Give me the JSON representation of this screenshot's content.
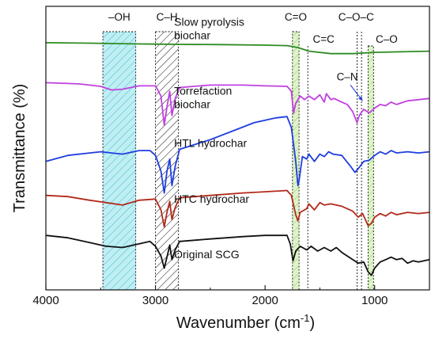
{
  "chart_data": {
    "type": "line",
    "title": "",
    "xlabel": "Wavenumber (cm",
    "xlabel_sup": "-1",
    "xlabel_tail": ")",
    "ylabel": "Transmittance (%)",
    "xlim": [
      4000,
      500
    ],
    "x_reversed": true,
    "xticks": [
      4000,
      3000,
      2000,
      1000
    ],
    "xtick_labels": [
      "4000",
      "3000",
      "2000",
      "1000"
    ],
    "y_ticks_shown": false,
    "bands": [
      {
        "label": "–OH",
        "from": 3480,
        "to": 3180,
        "fill": "#bfeef3",
        "hatch": "#39bfd1"
      },
      {
        "label": "C–H",
        "from": 3000,
        "to": 2790,
        "fill": "#ffffff",
        "hatch": "#111111"
      },
      {
        "label": "C=O",
        "from": 1750,
        "to": 1690,
        "fill": "#dff3c9",
        "hatch": "#8fcf5a"
      },
      {
        "label": "C=C",
        "from": 1610,
        "to": 1610,
        "fill": "none",
        "hatch": "none"
      },
      {
        "label": "C–O–C",
        "from": 1160,
        "to": 1120,
        "fill": "none",
        "hatch": "none"
      },
      {
        "label": "C–O",
        "from": 1060,
        "to": 1010,
        "fill": "#dff3c9",
        "hatch": "#8fcf5a"
      }
    ],
    "annotations": [
      {
        "text": "C–N",
        "x": 1250,
        "y": 8.35,
        "arrow_to": [
          1110,
          7.5
        ]
      }
    ],
    "series": [
      {
        "name": "Slow pyrolysis\nbiochar",
        "color": "#2e8b22",
        "label_x": 2830,
        "label_y": 10.6,
        "points": [
          [
            4000,
            9.9
          ],
          [
            3600,
            9.88
          ],
          [
            3200,
            9.85
          ],
          [
            3000,
            9.84
          ],
          [
            2800,
            9.83
          ],
          [
            2400,
            9.82
          ],
          [
            2000,
            9.8
          ],
          [
            1800,
            9.78
          ],
          [
            1700,
            9.7
          ],
          [
            1600,
            9.55
          ],
          [
            1400,
            9.45
          ],
          [
            1200,
            9.45
          ],
          [
            1000,
            9.5
          ],
          [
            800,
            9.52
          ],
          [
            500,
            9.55
          ]
        ]
      },
      {
        "name": "Torrefaction\nbiochar",
        "color": "#c040e0",
        "label_x": 2830,
        "label_y": 7.75,
        "points": [
          [
            4000,
            8.25
          ],
          [
            3700,
            8.2
          ],
          [
            3500,
            8.1
          ],
          [
            3400,
            7.95
          ],
          [
            3300,
            7.98
          ],
          [
            3150,
            8.12
          ],
          [
            3000,
            8.12
          ],
          [
            2950,
            7.7
          ],
          [
            2920,
            6.5
          ],
          [
            2895,
            7.25
          ],
          [
            2870,
            7.9
          ],
          [
            2850,
            6.9
          ],
          [
            2820,
            7.6
          ],
          [
            2780,
            8.05
          ],
          [
            2500,
            8.15
          ],
          [
            2200,
            8.15
          ],
          [
            2000,
            8.12
          ],
          [
            1800,
            8.1
          ],
          [
            1760,
            7.9
          ],
          [
            1740,
            7.0
          ],
          [
            1720,
            7.4
          ],
          [
            1680,
            7.7
          ],
          [
            1640,
            7.55
          ],
          [
            1600,
            7.7
          ],
          [
            1550,
            7.55
          ],
          [
            1500,
            7.75
          ],
          [
            1460,
            7.45
          ],
          [
            1440,
            7.8
          ],
          [
            1400,
            7.55
          ],
          [
            1370,
            7.6
          ],
          [
            1300,
            7.45
          ],
          [
            1250,
            7.35
          ],
          [
            1200,
            7.05
          ],
          [
            1160,
            6.6
          ],
          [
            1140,
            6.9
          ],
          [
            1100,
            7.15
          ],
          [
            1050,
            7.0
          ],
          [
            1000,
            7.2
          ],
          [
            950,
            7.35
          ],
          [
            900,
            7.3
          ],
          [
            850,
            7.45
          ],
          [
            800,
            7.35
          ],
          [
            700,
            7.5
          ],
          [
            600,
            7.55
          ],
          [
            500,
            7.6
          ]
        ]
      },
      {
        "name": "HTL hydrochar",
        "color": "#1f3de0",
        "label_x": 2830,
        "label_y": 5.6,
        "points": [
          [
            4000,
            5.0
          ],
          [
            3800,
            5.25
          ],
          [
            3600,
            5.35
          ],
          [
            3500,
            5.4
          ],
          [
            3400,
            5.35
          ],
          [
            3300,
            5.3
          ],
          [
            3150,
            5.45
          ],
          [
            3050,
            5.45
          ],
          [
            3000,
            5.25
          ],
          [
            2950,
            4.6
          ],
          [
            2920,
            3.7
          ],
          [
            2895,
            4.6
          ],
          [
            2870,
            5.1
          ],
          [
            2850,
            4.0
          ],
          [
            2820,
            4.8
          ],
          [
            2780,
            5.5
          ],
          [
            2500,
            5.9
          ],
          [
            2300,
            6.25
          ],
          [
            2100,
            6.6
          ],
          [
            1900,
            6.8
          ],
          [
            1800,
            6.85
          ],
          [
            1760,
            6.4
          ],
          [
            1720,
            5.0
          ],
          [
            1700,
            4.0
          ],
          [
            1690,
            4.2
          ],
          [
            1660,
            5.2
          ],
          [
            1620,
            5.1
          ],
          [
            1600,
            5.3
          ],
          [
            1550,
            5.0
          ],
          [
            1500,
            5.3
          ],
          [
            1460,
            5.2
          ],
          [
            1420,
            5.4
          ],
          [
            1380,
            5.3
          ],
          [
            1300,
            5.25
          ],
          [
            1220,
            4.8
          ],
          [
            1180,
            4.55
          ],
          [
            1150,
            4.7
          ],
          [
            1100,
            5.0
          ],
          [
            1050,
            5.05
          ],
          [
            1000,
            5.25
          ],
          [
            950,
            5.4
          ],
          [
            900,
            5.3
          ],
          [
            850,
            5.45
          ],
          [
            800,
            5.35
          ],
          [
            700,
            5.4
          ],
          [
            600,
            5.35
          ],
          [
            500,
            5.4
          ]
        ]
      },
      {
        "name": "HTC hydrochar",
        "color": "#b22a1a",
        "label_x": 2830,
        "label_y": 3.3,
        "points": [
          [
            4000,
            3.6
          ],
          [
            3800,
            3.55
          ],
          [
            3600,
            3.4
          ],
          [
            3450,
            3.3
          ],
          [
            3300,
            3.2
          ],
          [
            3150,
            3.4
          ],
          [
            3000,
            3.45
          ],
          [
            2950,
            3.0
          ],
          [
            2920,
            2.3
          ],
          [
            2895,
            2.9
          ],
          [
            2870,
            3.35
          ],
          [
            2850,
            2.6
          ],
          [
            2820,
            3.1
          ],
          [
            2780,
            3.5
          ],
          [
            2500,
            3.6
          ],
          [
            2200,
            3.7
          ],
          [
            2000,
            3.75
          ],
          [
            1800,
            3.8
          ],
          [
            1760,
            3.6
          ],
          [
            1720,
            2.8
          ],
          [
            1700,
            2.55
          ],
          [
            1680,
            2.9
          ],
          [
            1620,
            3.05
          ],
          [
            1600,
            3.25
          ],
          [
            1550,
            3.0
          ],
          [
            1500,
            3.3
          ],
          [
            1460,
            3.2
          ],
          [
            1400,
            3.25
          ],
          [
            1300,
            3.15
          ],
          [
            1200,
            2.95
          ],
          [
            1150,
            2.7
          ],
          [
            1110,
            2.85
          ],
          [
            1060,
            2.35
          ],
          [
            1030,
            2.45
          ],
          [
            1000,
            2.7
          ],
          [
            950,
            2.85
          ],
          [
            900,
            2.75
          ],
          [
            850,
            2.9
          ],
          [
            800,
            2.8
          ],
          [
            700,
            2.9
          ],
          [
            600,
            2.85
          ],
          [
            500,
            2.9
          ]
        ]
      },
      {
        "name": "Original SCG",
        "color": "#111111",
        "label_x": 2830,
        "label_y": 1.0,
        "points": [
          [
            4000,
            1.95
          ],
          [
            3800,
            1.85
          ],
          [
            3600,
            1.65
          ],
          [
            3450,
            1.5
          ],
          [
            3300,
            1.45
          ],
          [
            3150,
            1.6
          ],
          [
            3050,
            1.7
          ],
          [
            3000,
            1.5
          ],
          [
            2950,
            1.1
          ],
          [
            2920,
            0.6
          ],
          [
            2895,
            1.05
          ],
          [
            2870,
            1.55
          ],
          [
            2850,
            0.95
          ],
          [
            2820,
            1.35
          ],
          [
            2780,
            1.7
          ],
          [
            2500,
            1.8
          ],
          [
            2200,
            1.9
          ],
          [
            2000,
            1.95
          ],
          [
            1800,
            1.95
          ],
          [
            1770,
            1.6
          ],
          [
            1745,
            0.9
          ],
          [
            1720,
            1.3
          ],
          [
            1680,
            1.5
          ],
          [
            1620,
            1.35
          ],
          [
            1580,
            1.5
          ],
          [
            1520,
            1.3
          ],
          [
            1460,
            1.45
          ],
          [
            1400,
            1.3
          ],
          [
            1350,
            1.45
          ],
          [
            1300,
            1.25
          ],
          [
            1250,
            1.1
          ],
          [
            1200,
            0.95
          ],
          [
            1150,
            0.8
          ],
          [
            1100,
            0.85
          ],
          [
            1060,
            0.45
          ],
          [
            1030,
            0.3
          ],
          [
            1000,
            0.6
          ],
          [
            950,
            0.85
          ],
          [
            900,
            0.95
          ],
          [
            850,
            1.05
          ],
          [
            800,
            0.95
          ],
          [
            750,
            1.0
          ],
          [
            700,
            0.8
          ],
          [
            650,
            0.9
          ],
          [
            600,
            0.85
          ],
          [
            500,
            0.95
          ]
        ]
      }
    ]
  }
}
